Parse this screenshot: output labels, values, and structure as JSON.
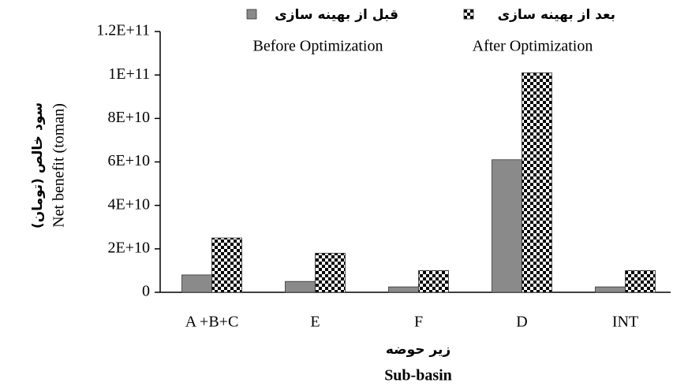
{
  "chart_data": {
    "type": "bar",
    "categories": [
      "A +B+C",
      "E",
      "F",
      "D",
      "INT"
    ],
    "series": [
      {
        "name": "Before Optimization",
        "name_fa": "قبل از بهینه سازی",
        "color": "#8a8a8a",
        "pattern": "solid",
        "values": [
          8000000000,
          5000000000,
          2500000000,
          61000000000,
          2500000000
        ]
      },
      {
        "name": "After Optimization",
        "name_fa": "بعد از بهینه سازی",
        "color": "#000000",
        "pattern": "checker",
        "values": [
          25000000000,
          18000000000,
          10000000000,
          101000000000,
          10000000000
        ]
      }
    ],
    "ylim": [
      0,
      120000000000
    ],
    "yticks": [
      0,
      {
        "value": 20000000000,
        "label": "2E+10"
      },
      {
        "value": 40000000000,
        "label": "4E+10"
      },
      {
        "value": 60000000000,
        "label": "6E+10"
      },
      {
        "value": 80000000000,
        "label": "8E+10"
      },
      {
        "value": 100000000000,
        "label": "1E+11"
      },
      {
        "value": 120000000000,
        "label": "1.2E+11"
      }
    ],
    "x_label": "Sub-basin",
    "x_label_fa": "زیر حوضه",
    "y_label": "Net benefit (toman)",
    "y_label_fa": "سود خالص (تومان)",
    "grid": false
  }
}
